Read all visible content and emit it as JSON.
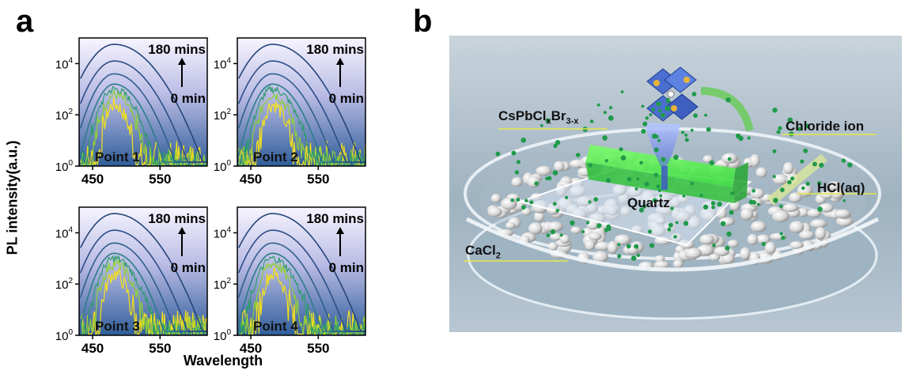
{
  "figure": {
    "panel_a_letter": "a",
    "panel_b_letter": "b",
    "shared_ylabel": "PL intensity(a.u.)",
    "shared_xlabel": "Wavelength"
  },
  "chart_data": [
    {
      "type": "line",
      "title": "",
      "xlabel": "",
      "ylabel": "",
      "xlim": [
        430,
        620
      ],
      "ylog": true,
      "ylim_exp": [
        0,
        5
      ],
      "xticks": [
        "450",
        "550"
      ],
      "yticks": [
        "10^0",
        "10^2",
        "10^4"
      ],
      "inset_label": "Point 1",
      "arrow_top": "180 mins",
      "arrow_bottom": "0 min",
      "peak_wavelength": 482,
      "series": [
        {
          "color": "#f5e11a",
          "peak_exp": 2.4
        },
        {
          "color": "#8fcf3a",
          "peak_exp": 2.8
        },
        {
          "color": "#2e9c6e",
          "peak_exp": 3.0
        },
        {
          "color": "#2b7c8a",
          "peak_exp": 3.2
        },
        {
          "color": "#2f5f8c",
          "peak_exp": 3.6
        },
        {
          "color": "#2c4d86",
          "peak_exp": 4.1
        },
        {
          "color": "#25457a",
          "peak_exp": 4.75
        }
      ]
    },
    {
      "type": "line",
      "title": "",
      "xlabel": "",
      "ylabel": "",
      "xlim": [
        430,
        620
      ],
      "ylog": true,
      "ylim_exp": [
        0,
        5
      ],
      "xticks": [
        "450",
        "550"
      ],
      "yticks": [
        "10^0",
        "10^2",
        "10^4"
      ],
      "inset_label": "Point 2",
      "arrow_top": "180 mins",
      "arrow_bottom": "0 min",
      "peak_wavelength": 482,
      "series": [
        {
          "color": "#f5e11a",
          "peak_exp": 2.4
        },
        {
          "color": "#8fcf3a",
          "peak_exp": 2.8
        },
        {
          "color": "#2e9c6e",
          "peak_exp": 3.0
        },
        {
          "color": "#2b7c8a",
          "peak_exp": 3.2
        },
        {
          "color": "#2f5f8c",
          "peak_exp": 3.6
        },
        {
          "color": "#2c4d86",
          "peak_exp": 4.1
        },
        {
          "color": "#25457a",
          "peak_exp": 4.75
        }
      ]
    },
    {
      "type": "line",
      "title": "",
      "xlabel": "",
      "ylabel": "",
      "xlim": [
        430,
        620
      ],
      "ylog": true,
      "ylim_exp": [
        0,
        5
      ],
      "xticks": [
        "450",
        "550"
      ],
      "yticks": [
        "10^0",
        "10^2",
        "10^4"
      ],
      "inset_label": "Point 3",
      "arrow_top": "180 mins",
      "arrow_bottom": "0 min",
      "peak_wavelength": 482,
      "series": [
        {
          "color": "#f5e11a",
          "peak_exp": 2.4
        },
        {
          "color": "#8fcf3a",
          "peak_exp": 2.8
        },
        {
          "color": "#2e9c6e",
          "peak_exp": 3.0
        },
        {
          "color": "#2b7c8a",
          "peak_exp": 3.2
        },
        {
          "color": "#2f5f8c",
          "peak_exp": 3.6
        },
        {
          "color": "#2c4d86",
          "peak_exp": 4.1
        },
        {
          "color": "#25457a",
          "peak_exp": 4.75
        }
      ]
    },
    {
      "type": "line",
      "title": "",
      "xlabel": "",
      "ylabel": "",
      "xlim": [
        430,
        620
      ],
      "ylog": true,
      "ylim_exp": [
        0,
        5
      ],
      "xticks": [
        "450",
        "550"
      ],
      "yticks": [
        "10^0",
        "10^2",
        "10^4"
      ],
      "inset_label": "Point 4",
      "arrow_top": "180 mins",
      "arrow_bottom": "0 min",
      "peak_wavelength": 482,
      "series": [
        {
          "color": "#f5e11a",
          "peak_exp": 2.4
        },
        {
          "color": "#8fcf3a",
          "peak_exp": 2.8
        },
        {
          "color": "#2e9c6e",
          "peak_exp": 3.0
        },
        {
          "color": "#2b7c8a",
          "peak_exp": 3.2
        },
        {
          "color": "#2f5f8c",
          "peak_exp": 3.6
        },
        {
          "color": "#2c4d86",
          "peak_exp": 4.1
        },
        {
          "color": "#25457a",
          "peak_exp": 4.75
        }
      ]
    }
  ],
  "scene": {
    "label_perovskite": "CsPbCl",
    "label_perovskite_sub_x": "x",
    "label_perovskite_br": "Br",
    "label_perovskite_sub_3x": "3-x",
    "label_chloride": "Chloride ion",
    "label_hcl": "HCl(aq)",
    "label_quartz": "Quartz",
    "label_cacl": "CaCl",
    "label_cacl_sub": "2"
  }
}
